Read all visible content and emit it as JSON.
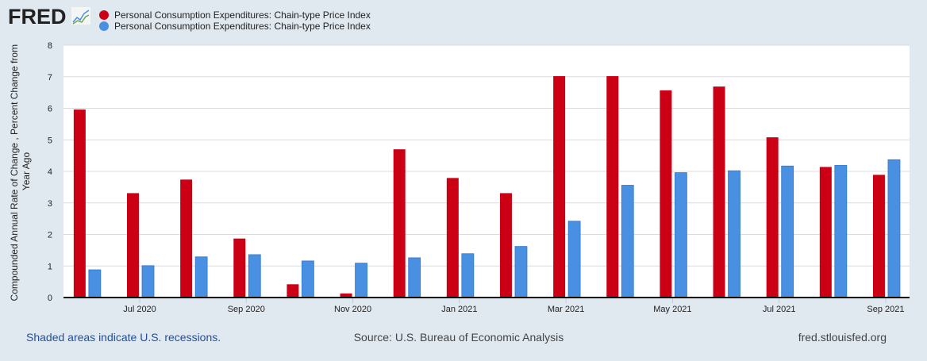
{
  "logo": {
    "text": "FRED"
  },
  "chart_data": {
    "type": "bar",
    "title": "",
    "ylabel": "Compounded Annual Rate of Change , Percent Change from Year Ago",
    "xlabel": "",
    "ylim": [
      0,
      8
    ],
    "yticks": [
      "0",
      "1",
      "2",
      "3",
      "4",
      "5",
      "6",
      "7",
      "8"
    ],
    "grid": true,
    "legend_position": "top-left",
    "categories": [
      "Jun 2020",
      "Jul 2020",
      "Aug 2020",
      "Sep 2020",
      "Oct 2020",
      "Nov 2020",
      "Dec 2020",
      "Jan 2021",
      "Feb 2021",
      "Mar 2021",
      "Apr 2021",
      "May 2021",
      "Jun 2021",
      "Jul 2021",
      "Aug 2021",
      "Sep 2021"
    ],
    "xtick_labels": [
      "Jul 2020",
      "Sep 2020",
      "Nov 2020",
      "Jan 2021",
      "Mar 2021",
      "May 2021",
      "Jul 2021",
      "Sep 2021"
    ],
    "series": [
      {
        "name": "Personal Consumption Expenditures: Chain-type Price Index",
        "color": "#cc0014",
        "values": [
          5.96,
          3.31,
          3.74,
          1.87,
          0.42,
          0.13,
          4.7,
          3.79,
          3.31,
          7.02,
          7.02,
          6.57,
          6.69,
          5.08,
          4.14,
          3.89
        ]
      },
      {
        "name": "Personal Consumption Expenditures: Chain-type Price Index",
        "color": "#4a90e2",
        "values": [
          0.88,
          1.01,
          1.29,
          1.36,
          1.16,
          1.09,
          1.26,
          1.39,
          1.62,
          2.42,
          3.56,
          3.96,
          4.02,
          4.17,
          4.19,
          4.37
        ]
      }
    ]
  },
  "footer": {
    "recessions": "Shaded areas indicate U.S. recessions.",
    "source": "Source: U.S. Bureau of Economic Analysis",
    "site": "fred.stlouisfed.org"
  }
}
